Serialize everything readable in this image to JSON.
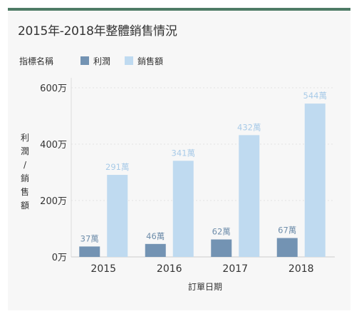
{
  "chart_data": {
    "type": "bar",
    "title": "2015年-2018年整體銷售情況",
    "categories": [
      "2015",
      "2016",
      "2017",
      "2018"
    ],
    "series": [
      {
        "name": "利潤",
        "values": [
          37,
          46,
          62,
          67
        ],
        "labels": [
          "37萬",
          "46萬",
          "62萬",
          "67萬"
        ],
        "color": "#7393b3"
      },
      {
        "name": "銷售額",
        "values": [
          291,
          341,
          432,
          544
        ],
        "labels": [
          "291萬",
          "341萬",
          "432萬",
          "544萬"
        ],
        "color": "#bfdaf0"
      }
    ],
    "legend_title": "指標名稱",
    "xlabel": "訂單日期",
    "ylabel": [
      "利",
      "潤",
      "/",
      "銷",
      "售",
      "額"
    ],
    "yticks": [
      {
        "value": 0,
        "label": "0万"
      },
      {
        "value": 200,
        "label": "200万"
      },
      {
        "value": 400,
        "label": "400万"
      },
      {
        "value": 600,
        "label": "600万"
      }
    ],
    "ylim": [
      0,
      600
    ],
    "unit": "萬",
    "grid": true,
    "legend_position": "top-left"
  },
  "colors": {
    "header_bar": "#4e7b66",
    "card_background": "#f7f7f7",
    "profit_label": "#6f8eab",
    "sales_label": "#a9cbe8"
  }
}
